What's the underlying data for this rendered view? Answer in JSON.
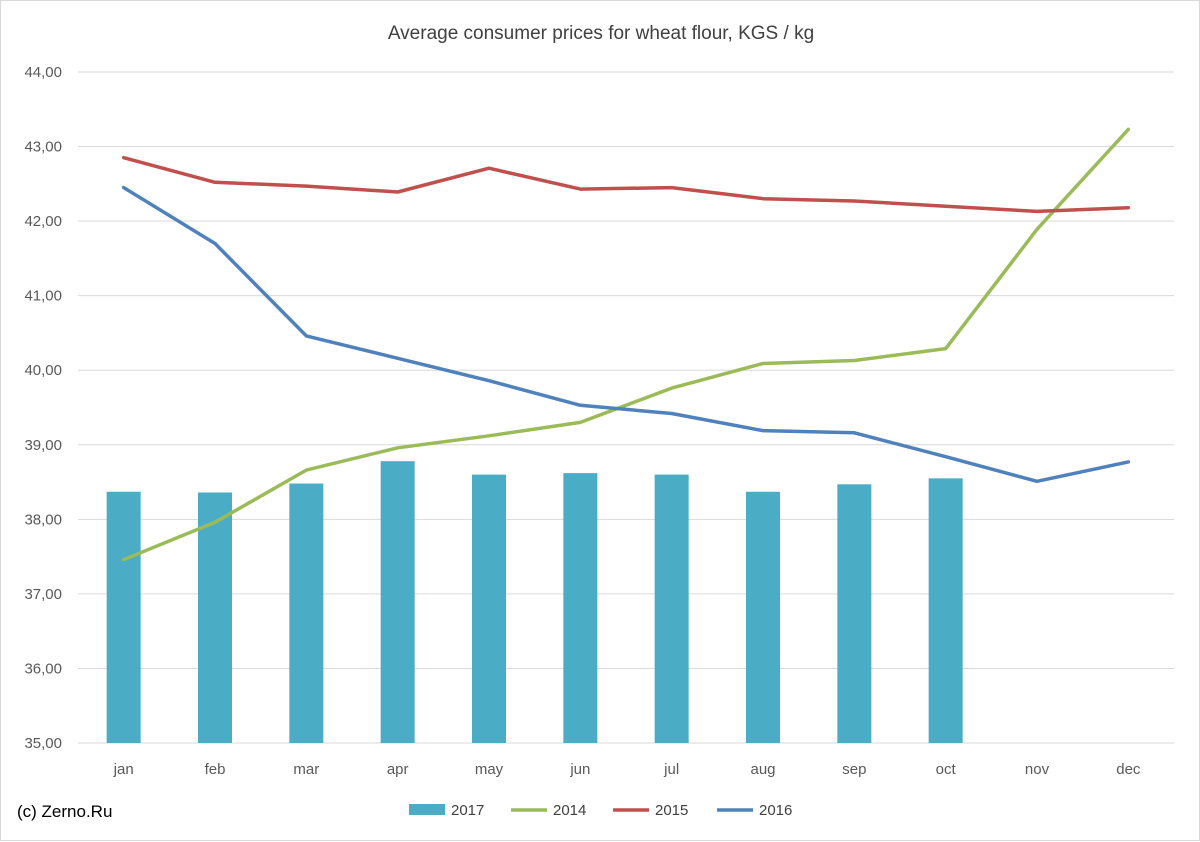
{
  "chart_data": {
    "type": "bar+line",
    "title": "Average consumer prices for wheat flour, KGS / kg",
    "categories": [
      "jan",
      "feb",
      "mar",
      "apr",
      "may",
      "jun",
      "jul",
      "aug",
      "sep",
      "oct",
      "nov",
      "dec"
    ],
    "y_ticks": [
      "35,00",
      "36,00",
      "37,00",
      "38,00",
      "39,00",
      "40,00",
      "41,00",
      "42,00",
      "43,00",
      "44,00"
    ],
    "ylim": [
      35,
      44
    ],
    "grid": true,
    "legend_position": "bottom",
    "bar_series": {
      "name": "2017",
      "color": "#4bacc6",
      "values": [
        38.37,
        38.36,
        38.48,
        38.78,
        38.6,
        38.62,
        38.6,
        38.37,
        38.47,
        38.55,
        null,
        null
      ]
    },
    "line_series": [
      {
        "name": "2014",
        "color": "#9bbb59",
        "values": [
          37.46,
          37.96,
          38.66,
          38.96,
          39.12,
          39.3,
          39.76,
          40.09,
          40.13,
          40.29,
          41.89,
          43.23
        ]
      },
      {
        "name": "2015",
        "color": "#c0504d",
        "values": [
          42.85,
          42.52,
          42.47,
          42.39,
          42.71,
          42.43,
          42.45,
          42.3,
          42.27,
          42.2,
          42.13,
          42.18
        ]
      },
      {
        "name": "2016",
        "color": "#4f81bd",
        "values": [
          42.45,
          41.7,
          40.46,
          40.16,
          39.86,
          39.53,
          39.42,
          39.19,
          39.16,
          38.84,
          38.51,
          38.77
        ]
      }
    ]
  },
  "source_label": "(c) Zerno.Ru"
}
